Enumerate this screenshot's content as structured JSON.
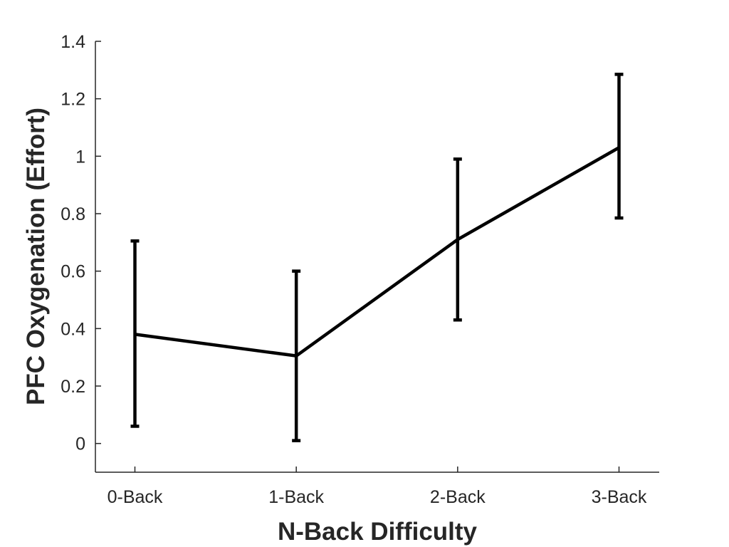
{
  "chart_data": {
    "type": "line",
    "title": "",
    "xlabel": "N-Back Difficulty",
    "ylabel": "PFC Oxygenation (Effort)",
    "categories": [
      "0-Back",
      "1-Back",
      "2-Back",
      "3-Back"
    ],
    "series": [
      {
        "values": [
          0.38,
          0.305,
          0.71,
          1.03
        ],
        "error_lower": [
          0.06,
          0.01,
          0.43,
          0.785
        ],
        "error_upper": [
          0.705,
          0.6,
          0.99,
          1.285
        ],
        "color": "#000000"
      }
    ],
    "ylim": [
      -0.1,
      1.4
    ],
    "yticks": [
      0,
      0.2,
      0.4,
      0.6,
      0.8,
      1,
      1.2,
      1.4
    ],
    "ytick_labels": [
      "0",
      "0.2",
      "0.4",
      "0.6",
      "0.8",
      "1",
      "1.2",
      "1.4"
    ],
    "grid": false,
    "legend": "none"
  }
}
